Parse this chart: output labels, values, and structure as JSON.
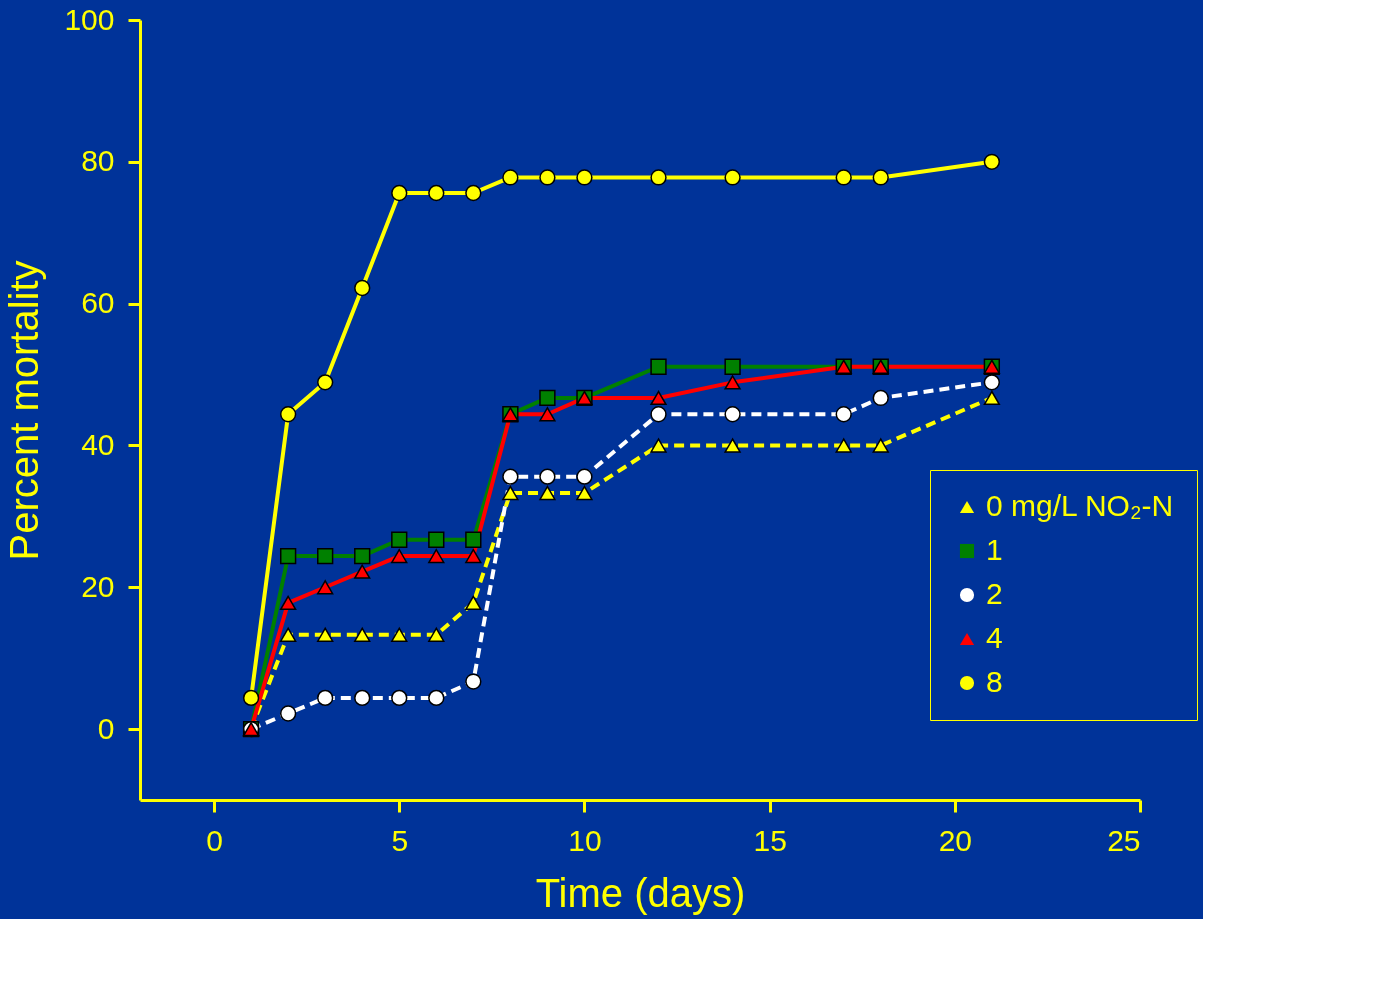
{
  "chart_data": {
    "type": "line",
    "xlabel": "Time (days)",
    "ylabel": "Percent mortality",
    "x": [
      1,
      2,
      3,
      4,
      5,
      6,
      7,
      8,
      9,
      10,
      12,
      14,
      17,
      18,
      21
    ],
    "xlim": [
      -2,
      25
    ],
    "xticks": [
      0,
      5,
      10,
      15,
      20,
      25
    ],
    "ylim": [
      -10,
      100
    ],
    "yticks": [
      0,
      20,
      40,
      60,
      80,
      100
    ],
    "grid": false,
    "legend": "bottom right",
    "series": [
      {
        "name": "0 mg/L NO₂-N",
        "color": "#ffff00",
        "marker": "triangle",
        "line_style": "dashed",
        "values": [
          0,
          13.3,
          13.3,
          13.3,
          13.3,
          13.3,
          17.8,
          33.3,
          33.3,
          33.3,
          40,
          40,
          40,
          40,
          46.7
        ]
      },
      {
        "name": "1",
        "color": "#008000",
        "marker": "square",
        "line_style": "solid",
        "values": [
          0,
          24.4,
          24.4,
          24.4,
          26.7,
          26.7,
          26.7,
          44.4,
          46.7,
          46.7,
          51.1,
          51.1,
          51.1,
          51.1,
          51.1
        ]
      },
      {
        "name": "2",
        "color": "#ffffff",
        "marker": "circle",
        "line_style": "dashed",
        "values": [
          0,
          2.2,
          4.4,
          4.4,
          4.4,
          4.4,
          6.7,
          35.6,
          35.6,
          35.6,
          44.4,
          44.4,
          44.4,
          46.7,
          48.9
        ]
      },
      {
        "name": "4",
        "color": "#ff0000",
        "marker": "triangle",
        "line_style": "solid",
        "values": [
          0,
          17.8,
          20,
          22.2,
          24.4,
          24.4,
          24.4,
          44.4,
          44.4,
          46.7,
          46.7,
          48.9,
          51.1,
          51.1,
          51.1
        ]
      },
      {
        "name": "8",
        "color": "#ffff00",
        "marker": "circle",
        "line_style": "solid",
        "values": [
          4.4,
          44.4,
          48.9,
          62.2,
          75.6,
          75.6,
          75.6,
          77.8,
          77.8,
          77.8,
          77.8,
          77.8,
          77.8,
          77.8,
          80
        ]
      }
    ]
  }
}
